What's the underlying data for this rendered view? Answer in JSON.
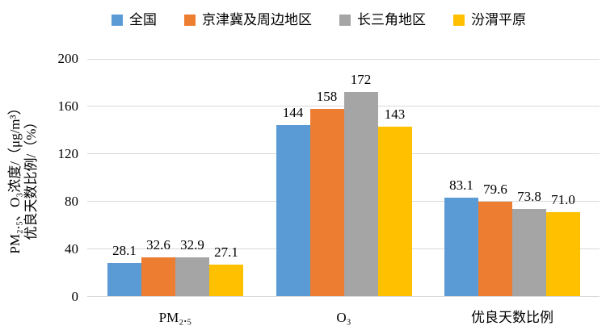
{
  "chart_data": {
    "type": "bar",
    "title": "",
    "categories": [
      "PM₂.₅",
      "O₃",
      "优良天数比例"
    ],
    "series": [
      {
        "name": "全国",
        "color": "#5B9BD5",
        "values": [
          28.1,
          144,
          83.1
        ],
        "labels": [
          "28.1",
          "144",
          "83.1"
        ]
      },
      {
        "name": "京津冀及周边地区",
        "color": "#ED7D31",
        "values": [
          32.6,
          158,
          79.6
        ],
        "labels": [
          "32.6",
          "158",
          "79.6"
        ]
      },
      {
        "name": "长三角地区",
        "color": "#A5A5A5",
        "values": [
          32.9,
          172,
          73.8
        ],
        "labels": [
          "32.9",
          "172",
          "73.8"
        ]
      },
      {
        "name": "汾渭平原",
        "color": "#FFC000",
        "values": [
          27.1,
          143,
          71.0
        ],
        "labels": [
          "27.1",
          "143",
          "71.0"
        ]
      }
    ],
    "ylabel_lines": [
      "PM₂.₅、O₃浓度/（μg/m³）",
      "优良天数比例/（%）"
    ],
    "xlabel": "",
    "ylim": [
      0,
      200
    ],
    "yticks": [
      0,
      40,
      80,
      120,
      160,
      200
    ],
    "grid": true,
    "legend_position": "top",
    "colors": {
      "gridline": "#D9D9D9",
      "text": "#000000",
      "background": "#FFFFFF"
    }
  }
}
